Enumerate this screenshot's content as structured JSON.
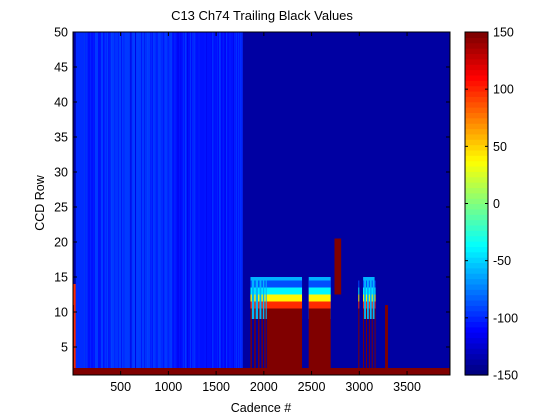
{
  "chart_data": {
    "type": "heatmap",
    "title": "C13 Ch74 Trailing Black Values",
    "xlabel": "Cadence #",
    "ylabel": "CCD Row",
    "xlim": [
      1,
      3950
    ],
    "ylim": [
      1,
      50
    ],
    "xticks": [
      "500",
      "1000",
      "1500",
      "2000",
      "2500",
      "3000",
      "3500"
    ],
    "yticks": [
      "5",
      "10",
      "15",
      "20",
      "25",
      "30",
      "35",
      "40",
      "45",
      "50"
    ],
    "colormap": "jet",
    "clim": [
      -150,
      150
    ],
    "colorbar_ticks": [
      "-150",
      "-100",
      "-50",
      "0",
      "50",
      "100",
      "150"
    ],
    "background_value": -140,
    "bands": [
      {
        "x": [
          1,
          30
        ],
        "y": [
          1,
          14
        ],
        "value": 100
      },
      {
        "x": [
          30,
          120
        ],
        "y": [
          2,
          50
        ],
        "value": -100
      },
      {
        "x": [
          120,
          1780
        ],
        "y": [
          2,
          50
        ],
        "value": -108
      },
      {
        "x": [
          230,
          1040
        ],
        "y": [
          2,
          50
        ],
        "value": -96
      },
      {
        "x": [
          1780,
          3950
        ],
        "y": [
          2,
          50
        ],
        "value": -140
      },
      {
        "x": [
          1,
          3950
        ],
        "y": [
          1,
          2
        ],
        "value": 150
      },
      {
        "x": [
          1860,
          2400
        ],
        "y": [
          9,
          15
        ],
        "value": -60
      },
      {
        "x": [
          2470,
          2700
        ],
        "y": [
          9,
          15
        ],
        "value": -60
      },
      {
        "x": [
          2740,
          2810
        ],
        "y": [
          12.5,
          20.5
        ],
        "value": 150
      },
      {
        "x": [
          3040,
          3160
        ],
        "y": [
          9,
          15
        ],
        "value": -60
      }
    ],
    "stack_rows": [
      {
        "y": [
          1,
          10.5
        ],
        "value": 150
      },
      {
        "y": [
          10.5,
          11.5
        ],
        "value": 100
      },
      {
        "y": [
          11.5,
          12.5
        ],
        "value": 40
      },
      {
        "y": [
          12.5,
          13.5
        ],
        "value": -40
      },
      {
        "y": [
          13.5,
          14.5
        ],
        "value": -90
      }
    ],
    "stack_columns": [
      [
        2030,
        2400
      ],
      [
        2470,
        2700
      ]
    ]
  }
}
